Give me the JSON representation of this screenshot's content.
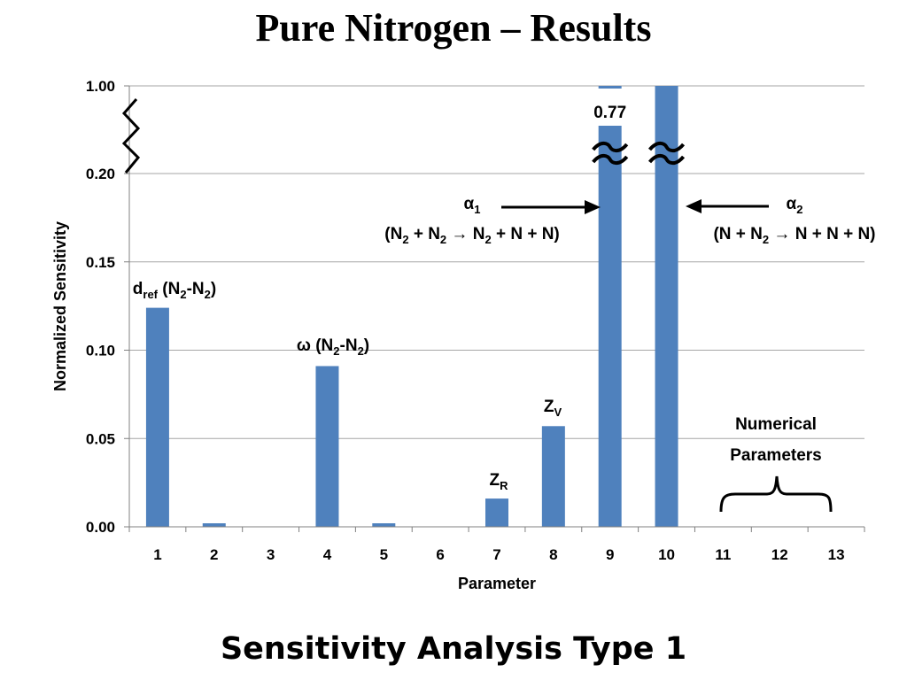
{
  "slide": {
    "title": "Pure Nitrogen – Results",
    "subtitle": "Sensitivity Analysis Type 1"
  },
  "colors": {
    "bar": "#4F81BD",
    "grid": "#A6A6A6",
    "axis": "#808080",
    "text": "#000000"
  },
  "chart_data": {
    "type": "bar",
    "categories": [
      "1",
      "2",
      "3",
      "4",
      "5",
      "6",
      "7",
      "8",
      "9",
      "10",
      "11",
      "12",
      "13"
    ],
    "values": [
      0.124,
      0.002,
      0,
      0.091,
      0.002,
      0,
      0.016,
      0.057,
      0.77,
      1.0,
      0,
      0,
      0
    ],
    "xlabel": "Parameter",
    "ylabel": "Normalized Sensitivity",
    "y_ticks": [
      "0.00",
      "0.05",
      "0.10",
      "0.15",
      "0.20",
      "1.00"
    ],
    "ylim": [
      0,
      1.0
    ],
    "axis_break": {
      "lower_max": 0.2,
      "upper_value": 1.0
    },
    "grid": true,
    "annotations": {
      "bar1": {
        "main": "d",
        "sub": "ref",
        "rest": " (N",
        "sub2": "2",
        "rest2": "-N",
        "sub3": "2",
        "rest3": ")"
      },
      "bar4": {
        "main": "ω (N",
        "sub": "2",
        "rest": "-N",
        "sub2": "2",
        "rest2": ")"
      },
      "bar7": {
        "main": "Z",
        "sub": "R"
      },
      "bar8": {
        "main": "Z",
        "sub": "V"
      },
      "bar9_value": "0.77",
      "alpha1": {
        "symbol": "α",
        "sub": "1",
        "reaction": [
          "(N",
          "2",
          " + N",
          "2",
          " → N",
          "2",
          " + N + N)"
        ]
      },
      "alpha2": {
        "symbol": "α",
        "sub": "2",
        "reaction": [
          "(N + N",
          "2",
          " → N + N + N)"
        ]
      },
      "numerical": [
        "Numerical",
        "Parameters"
      ]
    }
  }
}
